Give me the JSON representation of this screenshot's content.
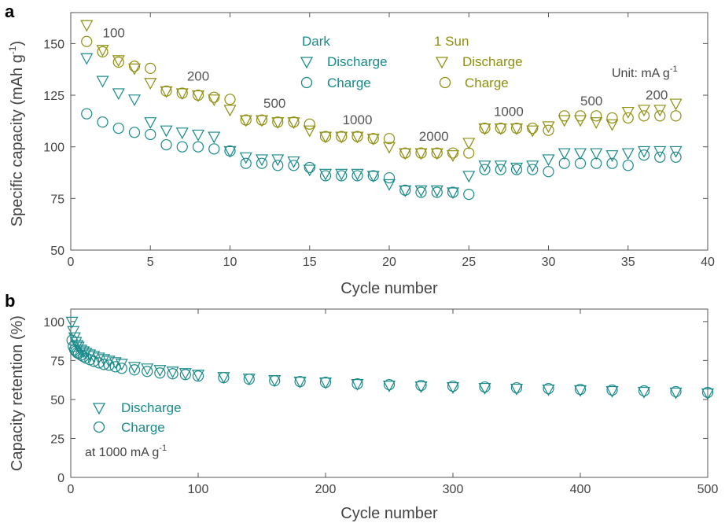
{
  "colors": {
    "dark": "#1a8a8a",
    "sun": "#8f8f10",
    "axis": "#555555",
    "text": "#444444"
  },
  "panels": [
    {
      "id": "a",
      "label": "a",
      "chart_data": {
        "type": "scatter",
        "xlabel": "Cycle number",
        "ylabel": "Specific capacity (mAh g",
        "ylabel_sup": "-1",
        "ylabel_end": ")",
        "xlim": [
          0,
          40
        ],
        "ylim": [
          50,
          165
        ],
        "xticks": [
          0,
          5,
          10,
          15,
          20,
          25,
          30,
          35,
          40
        ],
        "yticks": [
          50,
          75,
          100,
          125,
          150
        ],
        "legend": {
          "dark_title": "Dark",
          "sun_title": "1 Sun",
          "discharge_label": "Discharge",
          "charge_label": "Charge"
        },
        "unit_note": "Unit: mA g",
        "unit_note_sup": "-1",
        "rate_labels": [
          {
            "text": "100",
            "x": 2.7,
            "y": 153
          },
          {
            "text": "200",
            "x": 8.0,
            "y": 132
          },
          {
            "text": "500",
            "x": 12.8,
            "y": 119
          },
          {
            "text": "1000",
            "x": 18.0,
            "y": 111
          },
          {
            "text": "2000",
            "x": 22.8,
            "y": 103
          },
          {
            "text": "1000",
            "x": 27.5,
            "y": 115
          },
          {
            "text": "500",
            "x": 32.7,
            "y": 120
          },
          {
            "text": "200",
            "x": 36.8,
            "y": 123
          }
        ],
        "x": [
          1,
          2,
          3,
          4,
          5,
          6,
          7,
          8,
          9,
          10,
          11,
          12,
          13,
          14,
          15,
          16,
          17,
          18,
          19,
          20,
          21,
          22,
          23,
          24,
          25,
          26,
          27,
          28,
          29,
          30,
          31,
          32,
          33,
          34,
          35,
          36,
          37,
          38
        ],
        "series": [
          {
            "name": "Discharge",
            "group": "Dark",
            "marker": "triangle-down",
            "color": "#1a8a8a",
            "values": [
              143,
              132,
              126,
              123,
              112,
              108,
              107,
              106,
              105,
              98,
              95,
              94,
              94,
              93,
              89,
              87,
              87,
              87,
              86,
              82,
              79,
              79,
              79,
              78,
              86,
              91,
              91,
              90,
              91,
              94,
              97,
              97,
              97,
              96,
              97,
              98,
              98,
              98
            ]
          },
          {
            "name": "Charge",
            "group": "Dark",
            "marker": "circle",
            "color": "#1a8a8a",
            "values": [
              116,
              112,
              109,
              107,
              106,
              101,
              100,
              100,
              99,
              98,
              92,
              92,
              91,
              91,
              90,
              86,
              86,
              86,
              86,
              85,
              79,
              78,
              78,
              78,
              77,
              89,
              89,
              89,
              89,
              88,
              92,
              92,
              92,
              92,
              91,
              96,
              95,
              95
            ]
          },
          {
            "name": "Discharge",
            "group": "1 Sun",
            "marker": "triangle-down",
            "color": "#8f8f10",
            "values": [
              159,
              147,
              142,
              138,
              131,
              127,
              126,
              125,
              123,
              118,
              113,
              113,
              112,
              112,
              108,
              105,
              105,
              105,
              104,
              100,
              97,
              97,
              97,
              96,
              102,
              109,
              109,
              109,
              108,
              110,
              113,
              113,
              112,
              111,
              117,
              118,
              118,
              121
            ]
          },
          {
            "name": "Charge",
            "group": "1 Sun",
            "marker": "circle",
            "color": "#8f8f10",
            "values": [
              151,
              146,
              141,
              139,
              138,
              127,
              126,
              125,
              124,
              123,
              113,
              113,
              112,
              112,
              111,
              105,
              105,
              105,
              104,
              104,
              97,
              97,
              97,
              97,
              97,
              109,
              109,
              109,
              109,
              108,
              115,
              115,
              115,
              114,
              114,
              115,
              115,
              115
            ]
          }
        ]
      }
    },
    {
      "id": "b",
      "label": "b",
      "chart_data": {
        "type": "scatter",
        "xlabel": "Cycle number",
        "ylabel": "Capacity retention (%)",
        "xlim": [
          0,
          500
        ],
        "ylim": [
          0,
          108
        ],
        "xticks": [
          0,
          100,
          200,
          300,
          400,
          500
        ],
        "yticks": [
          0,
          25,
          50,
          75,
          100
        ],
        "legend": {
          "discharge_label": "Discharge",
          "charge_label": "Charge"
        },
        "note": "at 1000 mA g",
        "note_sup": "-1",
        "series": [
          {
            "name": "Discharge",
            "marker": "triangle-down",
            "color": "#1a8a8a",
            "x": [
              1,
              2,
              3,
              4,
              5,
              6,
              8,
              10,
              12,
              15,
              18,
              22,
              26,
              30,
              35,
              40,
              50,
              60,
              70,
              80,
              90,
              100,
              120,
              140,
              160,
              180,
              200,
              225,
              250,
              275,
              300,
              325,
              350,
              375,
              400,
              425,
              450,
              475,
              500
            ],
            "values": [
              100,
              94,
              90,
              87,
              85,
              84,
              82,
              81,
              80,
              79,
              78,
              77,
              76,
              75,
              74,
              73,
              71,
              70,
              69,
              68,
              67,
              66,
              64.5,
              63.5,
              62.5,
              61.5,
              61,
              60,
              59,
              58.5,
              58,
              57.5,
              57,
              56.5,
              56,
              55.5,
              55,
              54.5,
              54
            ]
          },
          {
            "name": "Charge",
            "marker": "circle",
            "color": "#1a8a8a",
            "x": [
              1,
              2,
              3,
              4,
              5,
              6,
              8,
              10,
              12,
              15,
              18,
              22,
              26,
              30,
              35,
              40,
              50,
              60,
              70,
              80,
              90,
              100,
              120,
              140,
              160,
              180,
              200,
              225,
              250,
              275,
              300,
              325,
              350,
              375,
              400,
              425,
              450,
              475,
              500
            ],
            "values": [
              88,
              84,
              82,
              81,
              80,
              79.5,
              78.5,
              77.5,
              76.5,
              75.5,
              74.5,
              73.5,
              72.5,
              72,
              71,
              70,
              69,
              68,
              67,
              66.5,
              66,
              65,
              64,
              63,
              62,
              61.5,
              61,
              60,
              59.5,
              59,
              58.5,
              58,
              57.5,
              57,
              56.5,
              56,
              55.5,
              55,
              54.5
            ]
          }
        ]
      }
    }
  ]
}
